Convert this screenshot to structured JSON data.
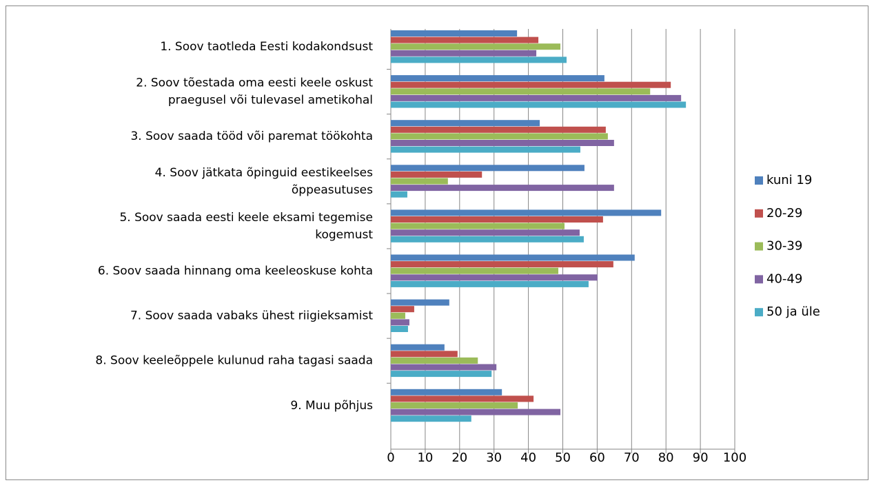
{
  "chart_data": {
    "type": "bar",
    "orientation": "horizontal",
    "categories": [
      "1. Soov taotleda Eesti kodakondsust",
      "2. Soov tõestada oma eesti keele oskust\npraegusel või tulevasel ametikohal",
      "3. Soov saada tööd või paremat töökohta",
      "4. Soov jätkata õpinguid eestikeelses\nõppeasutuses",
      "5. Soov saada eesti keele eksami tegemise\nkogemust",
      "6. Soov saada hinnang oma keeleoskuse kohta",
      "7. Soov saada vabaks ühest riigieksamist",
      "8. Soov keeleõppele kulunud raha tagasi saada",
      "9. Muu põhjus"
    ],
    "series": [
      {
        "name": "kuni 19",
        "color": "#4f81bd",
        "values": [
          36.7,
          62.1,
          43.3,
          56.3,
          78.6,
          70.9,
          17,
          15.6,
          32.3
        ]
      },
      {
        "name": "20-29",
        "color": "#c0504d",
        "values": [
          42.9,
          81.4,
          62.5,
          26.5,
          61.7,
          64.7,
          6.8,
          19.4,
          41.5
        ]
      },
      {
        "name": "30-39",
        "color": "#9bbb59",
        "values": [
          49.3,
          75.4,
          63.1,
          16.6,
          50.5,
          48.7,
          4.2,
          25.3,
          36.9
        ]
      },
      {
        "name": "40-49",
        "color": "#8064a2",
        "values": [
          42.3,
          84.4,
          64.9,
          64.9,
          54.9,
          60.1,
          5.4,
          30.7,
          49.3
        ]
      },
      {
        "name": "50 ja üle",
        "color": "#4bacc6",
        "values": [
          51.1,
          85.8,
          55.1,
          4.8,
          56.1,
          57.5,
          5,
          29.3,
          23.4
        ]
      }
    ],
    "xlim": [
      0,
      100
    ],
    "xticks": [
      0,
      10,
      20,
      30,
      40,
      50,
      60,
      70,
      80,
      90,
      100
    ],
    "grid": true,
    "legend": "right"
  }
}
